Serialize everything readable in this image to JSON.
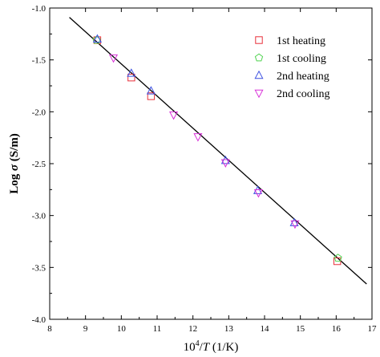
{
  "chart_data": {
    "type": "scatter",
    "xlabel_main": "10",
    "xlabel_sup": "4",
    "xlabel_sep": "/",
    "xlabel_var": "T",
    "xlabel_unit": " (1/K)",
    "ylabel_main": "Log ",
    "ylabel_var": "σ",
    "ylabel_unit": " (S/m)",
    "xlim": [
      8,
      17
    ],
    "ylim": [
      -4.0,
      -1.0
    ],
    "xticks": [
      8,
      9,
      10,
      11,
      12,
      13,
      14,
      15,
      16,
      17
    ],
    "xtick_labels": [
      "8",
      "9",
      "10",
      "11",
      "12",
      "13",
      "14",
      "15",
      "16",
      "17"
    ],
    "yticks": [
      -1.0,
      -1.5,
      -2.0,
      -2.5,
      -3.0,
      -3.5,
      -4.0
    ],
    "ytick_labels": [
      "-1.0",
      "-1.5",
      "-2.0",
      "-2.5",
      "-3.0",
      "-3.5",
      "-4.0"
    ],
    "grid": false,
    "legend_position": "top-right",
    "fit_line": {
      "x": [
        8.55,
        16.85
      ],
      "y": [
        -1.09,
        -3.66
      ]
    },
    "series": [
      {
        "name": "1st heating",
        "marker": "square",
        "color": "#e8303a",
        "x": [
          9.33,
          10.28,
          10.83,
          16.03
        ],
        "y": [
          -1.31,
          -1.67,
          -1.85,
          -3.44
        ]
      },
      {
        "name": "1st cooling",
        "marker": "pentagon",
        "color": "#4fd34f",
        "x": [
          9.31,
          16.05
        ],
        "y": [
          -1.31,
          -3.41
        ]
      },
      {
        "name": "2nd heating",
        "marker": "triangle-up",
        "color": "#3a4fe0",
        "x": [
          9.33,
          10.28,
          10.83,
          12.91,
          13.81,
          14.83
        ],
        "y": [
          -1.3,
          -1.63,
          -1.8,
          -2.47,
          -2.76,
          -3.07
        ]
      },
      {
        "name": "2nd cooling",
        "marker": "triangle-down",
        "color": "#d830d8",
        "x": [
          9.78,
          11.46,
          12.14,
          12.91,
          13.83,
          14.85
        ],
        "y": [
          -1.48,
          -2.03,
          -2.24,
          -2.49,
          -2.78,
          -3.08
        ]
      }
    ]
  }
}
